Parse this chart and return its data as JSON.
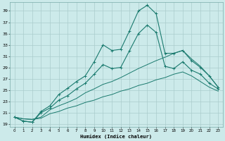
{
  "title": "",
  "xlabel": "Humidex (Indice chaleur)",
  "ylabel": "",
  "bg_color": "#cceaea",
  "grid_color": "#aacccc",
  "line_color": "#1a7a6e",
  "xlim": [
    -0.5,
    23.5
  ],
  "ylim": [
    18.5,
    40.5
  ],
  "yticks": [
    19,
    21,
    23,
    25,
    27,
    29,
    31,
    33,
    35,
    37,
    39
  ],
  "xticks": [
    0,
    1,
    2,
    3,
    4,
    5,
    6,
    7,
    8,
    9,
    10,
    11,
    12,
    13,
    14,
    15,
    16,
    17,
    18,
    19,
    20,
    21,
    22,
    23
  ],
  "curve1_x": [
    0,
    1,
    2,
    3,
    4,
    5,
    6,
    7,
    8,
    9,
    10,
    11,
    12,
    13,
    14,
    15,
    16,
    17,
    18,
    19,
    20,
    21,
    22,
    23
  ],
  "curve1_y": [
    20.2,
    19.5,
    19.3,
    21.2,
    22.2,
    24.2,
    25.3,
    26.5,
    27.5,
    30.0,
    33.0,
    32.0,
    32.2,
    35.5,
    39.0,
    40.0,
    38.5,
    31.5,
    31.5,
    32.0,
    30.2,
    29.0,
    27.5,
    25.5
  ],
  "curve2_x": [
    0,
    1,
    2,
    3,
    4,
    5,
    6,
    7,
    8,
    9,
    10,
    11,
    12,
    13,
    14,
    15,
    16,
    17,
    18,
    19,
    20,
    21,
    22,
    23
  ],
  "curve2_y": [
    20.2,
    19.5,
    19.3,
    21.0,
    21.8,
    23.2,
    24.0,
    25.2,
    26.2,
    27.8,
    29.5,
    28.8,
    29.0,
    32.0,
    35.0,
    36.5,
    35.2,
    29.2,
    28.8,
    30.0,
    28.5,
    27.8,
    26.2,
    25.2
  ],
  "curve3_x": [
    0,
    1,
    2,
    3,
    4,
    5,
    6,
    7,
    8,
    9,
    10,
    11,
    12,
    13,
    14,
    15,
    16,
    17,
    18,
    19,
    20,
    21,
    22,
    23
  ],
  "curve3_y": [
    20.2,
    19.9,
    19.8,
    20.2,
    21.5,
    22.2,
    22.8,
    23.5,
    24.5,
    25.2,
    26.0,
    26.5,
    27.2,
    28.0,
    28.8,
    29.5,
    30.2,
    30.8,
    31.5,
    32.0,
    30.5,
    29.2,
    27.5,
    25.5
  ],
  "curve4_x": [
    0,
    1,
    2,
    3,
    4,
    5,
    6,
    7,
    8,
    9,
    10,
    11,
    12,
    13,
    14,
    15,
    16,
    17,
    18,
    19,
    20,
    21,
    22,
    23
  ],
  "curve4_y": [
    20.2,
    19.9,
    19.8,
    20.0,
    20.8,
    21.2,
    21.8,
    22.2,
    22.8,
    23.2,
    23.8,
    24.2,
    24.8,
    25.2,
    25.8,
    26.2,
    26.8,
    27.2,
    27.8,
    28.2,
    27.5,
    26.5,
    25.5,
    24.8
  ]
}
